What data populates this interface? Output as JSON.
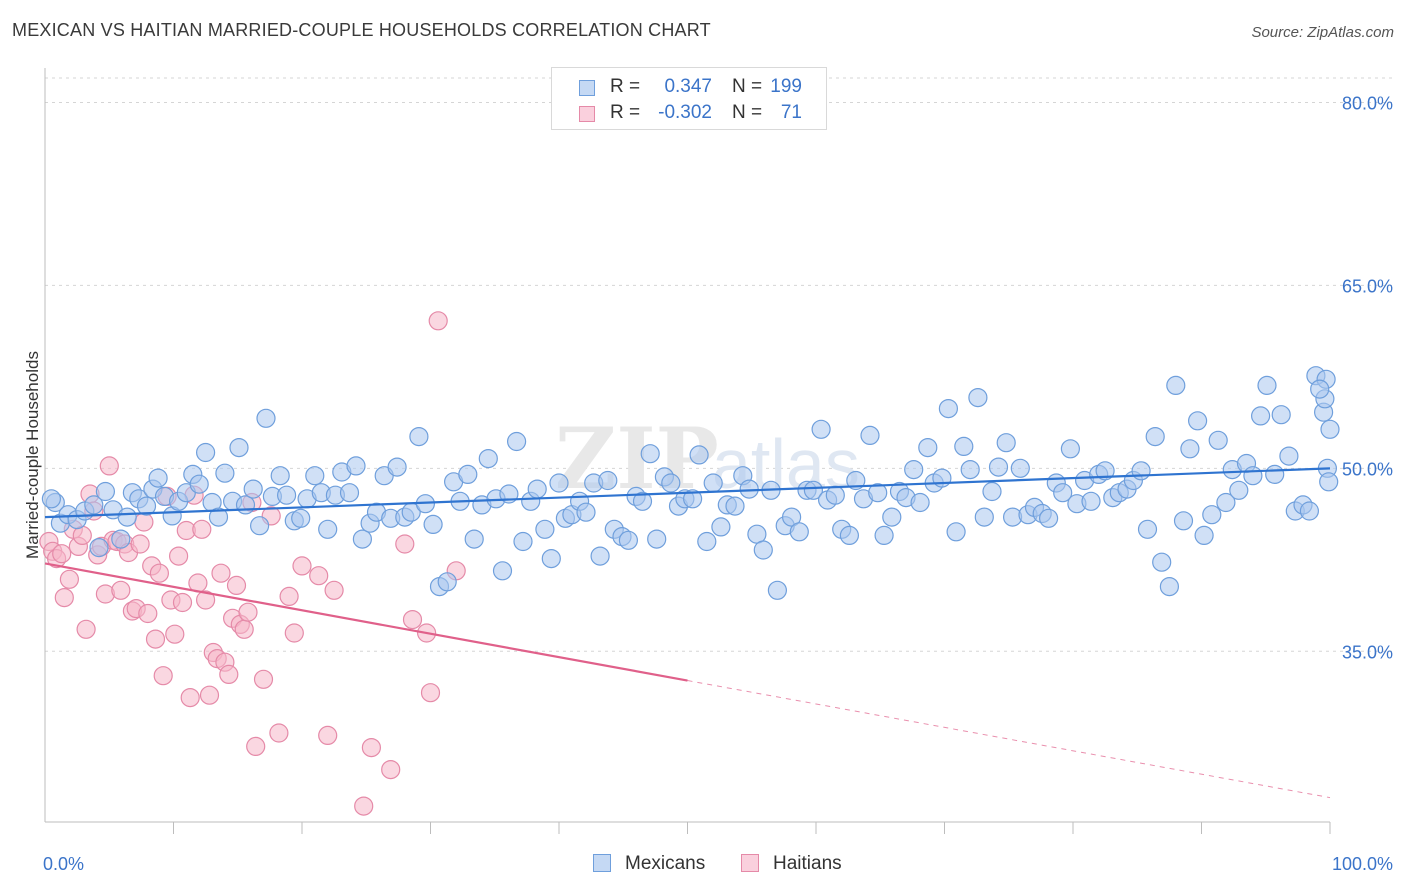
{
  "title": "MEXICAN VS HAITIAN MARRIED-COUPLE HOUSEHOLDS CORRELATION CHART",
  "source": "Source: ZipAtlas.com",
  "watermark": "ZIPatlas",
  "colors": {
    "blue_fill": "#aac7ef",
    "blue_stroke": "#6f9fdc",
    "blue_line": "#2f74d0",
    "pink_fill": "#f6b6c9",
    "pink_stroke": "#e58aa8",
    "pink_line": "#e0608a",
    "tick_label": "#3b74c9",
    "grid": "#d5d5d5"
  },
  "legend_top": {
    "rows": [
      {
        "r_label": "R =",
        "r_value": "0.347",
        "n_label": "N =",
        "n_value": "199",
        "series": "Mexicans"
      },
      {
        "r_label": "R =",
        "r_value": "-0.302",
        "n_label": "N =",
        "n_value": "71",
        "series": "Haitians"
      }
    ]
  },
  "legend_bottom": [
    "Mexicans",
    "Haitians"
  ],
  "chart_data": {
    "type": "scatter",
    "title": "MEXICAN VS HAITIAN MARRIED-COUPLE HOUSEHOLDS CORRELATION CHART",
    "xlabel": "",
    "ylabel": "Married-couple Households",
    "xlim": [
      0,
      100
    ],
    "ylim": [
      21,
      82.5
    ],
    "x_tick_labels": [
      "0.0%",
      "100.0%"
    ],
    "y_ticks": [
      35,
      50,
      65,
      80
    ],
    "y_tick_labels": [
      "35.0%",
      "50.0%",
      "65.0%",
      "80.0%"
    ],
    "grid": "horizontal dashed",
    "legend_placement": "top-center and bottom-center",
    "series": [
      {
        "name": "Mexicans",
        "color": "#aac7ef",
        "trend": {
          "x": [
            0,
            100
          ],
          "y": [
            46.0,
            50.0
          ],
          "solid_to": 100
        },
        "points": [
          [
            0.8,
            47.2
          ],
          [
            1.2,
            45.5
          ],
          [
            1.8,
            46.2
          ],
          [
            2.5,
            45.8
          ],
          [
            3.1,
            46.5
          ],
          [
            3.8,
            47.0
          ],
          [
            4.2,
            43.5
          ],
          [
            4.7,
            48.1
          ],
          [
            5.3,
            46.6
          ],
          [
            5.9,
            44.2
          ],
          [
            6.4,
            46.0
          ],
          [
            6.8,
            48.0
          ],
          [
            7.3,
            47.5
          ],
          [
            7.9,
            46.9
          ],
          [
            8.4,
            48.3
          ],
          [
            8.8,
            49.2
          ],
          [
            9.3,
            47.7
          ],
          [
            9.9,
            46.1
          ],
          [
            10.4,
            47.3
          ],
          [
            11.0,
            48.0
          ],
          [
            11.5,
            49.5
          ],
          [
            12.0,
            48.7
          ],
          [
            12.5,
            51.3
          ],
          [
            13.0,
            47.2
          ],
          [
            13.5,
            46.0
          ],
          [
            14.0,
            49.6
          ],
          [
            14.6,
            47.3
          ],
          [
            15.1,
            51.7
          ],
          [
            15.6,
            47.0
          ],
          [
            16.2,
            48.3
          ],
          [
            16.7,
            45.3
          ],
          [
            17.2,
            54.1
          ],
          [
            17.7,
            47.7
          ],
          [
            18.3,
            49.4
          ],
          [
            18.8,
            47.8
          ],
          [
            19.4,
            45.7
          ],
          [
            19.9,
            45.9
          ],
          [
            20.4,
            47.5
          ],
          [
            21.0,
            49.4
          ],
          [
            21.5,
            48.0
          ],
          [
            22.0,
            45.0
          ],
          [
            22.6,
            47.8
          ],
          [
            23.1,
            49.7
          ],
          [
            23.7,
            48.0
          ],
          [
            24.2,
            50.2
          ],
          [
            24.7,
            44.2
          ],
          [
            25.3,
            45.5
          ],
          [
            25.8,
            46.4
          ],
          [
            26.4,
            49.4
          ],
          [
            26.9,
            45.9
          ],
          [
            27.4,
            50.1
          ],
          [
            28.0,
            46.0
          ],
          [
            28.5,
            46.4
          ],
          [
            29.1,
            52.6
          ],
          [
            29.6,
            47.1
          ],
          [
            30.2,
            45.4
          ],
          [
            30.7,
            40.3
          ],
          [
            31.3,
            40.7
          ],
          [
            31.8,
            48.9
          ],
          [
            32.3,
            47.3
          ],
          [
            32.9,
            49.5
          ],
          [
            33.4,
            44.2
          ],
          [
            34.0,
            47.0
          ],
          [
            34.5,
            50.8
          ],
          [
            35.1,
            47.5
          ],
          [
            35.6,
            41.6
          ],
          [
            36.1,
            47.9
          ],
          [
            36.7,
            52.2
          ],
          [
            37.2,
            44.0
          ],
          [
            37.8,
            47.3
          ],
          [
            38.3,
            48.3
          ],
          [
            38.9,
            45.0
          ],
          [
            39.4,
            42.6
          ],
          [
            40.0,
            48.8
          ],
          [
            40.5,
            45.9
          ],
          [
            41.0,
            46.2
          ],
          [
            41.6,
            47.3
          ],
          [
            42.1,
            46.4
          ],
          [
            42.7,
            48.8
          ],
          [
            43.2,
            42.8
          ],
          [
            43.8,
            49.0
          ],
          [
            44.3,
            45.0
          ],
          [
            44.9,
            44.4
          ],
          [
            45.4,
            44.1
          ],
          [
            46.0,
            47.7
          ],
          [
            46.5,
            47.3
          ],
          [
            47.1,
            51.2
          ],
          [
            47.6,
            44.2
          ],
          [
            48.2,
            49.3
          ],
          [
            48.7,
            48.8
          ],
          [
            49.3,
            46.9
          ],
          [
            49.8,
            47.5
          ],
          [
            50.4,
            47.5
          ],
          [
            50.9,
            51.1
          ],
          [
            51.5,
            44.0
          ],
          [
            52.0,
            48.8
          ],
          [
            52.6,
            45.2
          ],
          [
            53.1,
            47.0
          ],
          [
            53.7,
            46.9
          ],
          [
            54.3,
            49.4
          ],
          [
            54.8,
            48.3
          ],
          [
            55.4,
            44.6
          ],
          [
            55.9,
            43.3
          ],
          [
            56.5,
            48.2
          ],
          [
            57.0,
            40.0
          ],
          [
            57.6,
            45.3
          ],
          [
            58.1,
            46.0
          ],
          [
            58.7,
            44.8
          ],
          [
            59.3,
            48.2
          ],
          [
            59.8,
            48.2
          ],
          [
            60.4,
            53.2
          ],
          [
            60.9,
            47.4
          ],
          [
            61.5,
            47.8
          ],
          [
            62.0,
            45.0
          ],
          [
            62.6,
            44.5
          ],
          [
            63.1,
            49.0
          ],
          [
            63.7,
            47.5
          ],
          [
            64.2,
            52.7
          ],
          [
            64.8,
            48.0
          ],
          [
            65.3,
            44.5
          ],
          [
            65.9,
            46.0
          ],
          [
            66.5,
            48.1
          ],
          [
            67.0,
            47.6
          ],
          [
            67.6,
            49.9
          ],
          [
            68.1,
            47.2
          ],
          [
            68.7,
            51.7
          ],
          [
            69.2,
            48.8
          ],
          [
            69.8,
            49.2
          ],
          [
            70.3,
            54.9
          ],
          [
            70.9,
            44.8
          ],
          [
            71.5,
            51.8
          ],
          [
            72.0,
            49.9
          ],
          [
            72.6,
            55.8
          ],
          [
            73.1,
            46.0
          ],
          [
            73.7,
            48.1
          ],
          [
            74.2,
            50.1
          ],
          [
            74.8,
            52.1
          ],
          [
            75.3,
            46.0
          ],
          [
            75.9,
            50.0
          ],
          [
            76.5,
            46.2
          ],
          [
            77.0,
            46.8
          ],
          [
            77.6,
            46.3
          ],
          [
            78.1,
            45.9
          ],
          [
            78.7,
            48.8
          ],
          [
            79.2,
            48.0
          ],
          [
            79.8,
            51.6
          ],
          [
            80.3,
            47.1
          ],
          [
            80.9,
            49.0
          ],
          [
            81.4,
            47.3
          ],
          [
            82.0,
            49.5
          ],
          [
            82.5,
            49.8
          ],
          [
            83.1,
            47.6
          ],
          [
            83.6,
            48.0
          ],
          [
            84.2,
            48.3
          ],
          [
            84.7,
            49.0
          ],
          [
            85.3,
            49.8
          ],
          [
            85.8,
            45.0
          ],
          [
            86.4,
            52.6
          ],
          [
            86.9,
            42.3
          ],
          [
            87.5,
            40.3
          ],
          [
            88.0,
            56.8
          ],
          [
            88.6,
            45.7
          ],
          [
            89.1,
            51.6
          ],
          [
            89.7,
            53.9
          ],
          [
            90.2,
            44.5
          ],
          [
            90.8,
            46.2
          ],
          [
            91.3,
            52.3
          ],
          [
            91.9,
            47.2
          ],
          [
            92.4,
            49.9
          ],
          [
            92.9,
            48.2
          ],
          [
            93.5,
            50.4
          ],
          [
            94.0,
            49.4
          ],
          [
            94.6,
            54.3
          ],
          [
            95.1,
            56.8
          ],
          [
            95.7,
            49.5
          ],
          [
            96.2,
            54.4
          ],
          [
            96.8,
            51.0
          ],
          [
            97.3,
            46.5
          ],
          [
            97.9,
            47.0
          ],
          [
            98.4,
            46.5
          ],
          [
            98.9,
            57.6
          ],
          [
            99.5,
            54.6
          ],
          [
            99.7,
            57.3
          ],
          [
            99.8,
            50.0
          ],
          [
            99.9,
            48.9
          ],
          [
            100.0,
            53.2
          ],
          [
            99.6,
            55.7
          ],
          [
            99.2,
            56.5
          ],
          [
            0.5,
            47.5
          ]
        ]
      },
      {
        "name": "Haitians",
        "color": "#f6b6c9",
        "trend": {
          "x": [
            0,
            100
          ],
          "y": [
            42.2,
            23.0
          ],
          "solid_to": 50
        },
        "points": [
          [
            0.3,
            44.0
          ],
          [
            0.6,
            43.2
          ],
          [
            0.9,
            42.6
          ],
          [
            1.3,
            43.0
          ],
          [
            1.5,
            39.4
          ],
          [
            1.9,
            40.9
          ],
          [
            2.2,
            45.0
          ],
          [
            2.6,
            43.6
          ],
          [
            2.9,
            44.5
          ],
          [
            3.2,
            36.8
          ],
          [
            3.5,
            47.9
          ],
          [
            3.8,
            46.5
          ],
          [
            4.1,
            42.9
          ],
          [
            4.4,
            43.6
          ],
          [
            4.7,
            39.7
          ],
          [
            5.0,
            50.2
          ],
          [
            5.3,
            44.1
          ],
          [
            5.6,
            44.0
          ],
          [
            5.9,
            40.0
          ],
          [
            6.2,
            43.8
          ],
          [
            6.5,
            43.1
          ],
          [
            6.8,
            38.3
          ],
          [
            7.1,
            38.5
          ],
          [
            7.4,
            43.8
          ],
          [
            7.7,
            45.6
          ],
          [
            8.0,
            38.1
          ],
          [
            8.3,
            42.0
          ],
          [
            8.6,
            36.0
          ],
          [
            8.9,
            41.4
          ],
          [
            9.2,
            33.0
          ],
          [
            9.5,
            47.7
          ],
          [
            9.8,
            39.2
          ],
          [
            10.1,
            36.4
          ],
          [
            10.4,
            42.8
          ],
          [
            10.7,
            39.0
          ],
          [
            11.0,
            44.9
          ],
          [
            11.3,
            31.2
          ],
          [
            11.6,
            47.8
          ],
          [
            11.9,
            40.6
          ],
          [
            12.2,
            45.0
          ],
          [
            12.5,
            39.2
          ],
          [
            12.8,
            31.4
          ],
          [
            13.1,
            34.9
          ],
          [
            13.4,
            34.4
          ],
          [
            13.7,
            41.4
          ],
          [
            14.0,
            34.1
          ],
          [
            14.3,
            33.1
          ],
          [
            14.6,
            37.7
          ],
          [
            14.9,
            40.4
          ],
          [
            15.2,
            37.2
          ],
          [
            15.5,
            36.8
          ],
          [
            15.8,
            38.2
          ],
          [
            16.1,
            47.2
          ],
          [
            16.4,
            27.2
          ],
          [
            17.0,
            32.7
          ],
          [
            17.6,
            46.1
          ],
          [
            18.2,
            28.3
          ],
          [
            19.0,
            39.5
          ],
          [
            19.4,
            36.5
          ],
          [
            20.0,
            42.0
          ],
          [
            21.3,
            41.2
          ],
          [
            22.0,
            28.1
          ],
          [
            22.5,
            40.0
          ],
          [
            24.8,
            22.3
          ],
          [
            25.4,
            27.1
          ],
          [
            26.9,
            25.3
          ],
          [
            28.0,
            43.8
          ],
          [
            28.6,
            37.6
          ],
          [
            29.7,
            36.5
          ],
          [
            30.0,
            31.6
          ],
          [
            30.6,
            62.1
          ],
          [
            32.0,
            41.6
          ]
        ]
      }
    ]
  }
}
